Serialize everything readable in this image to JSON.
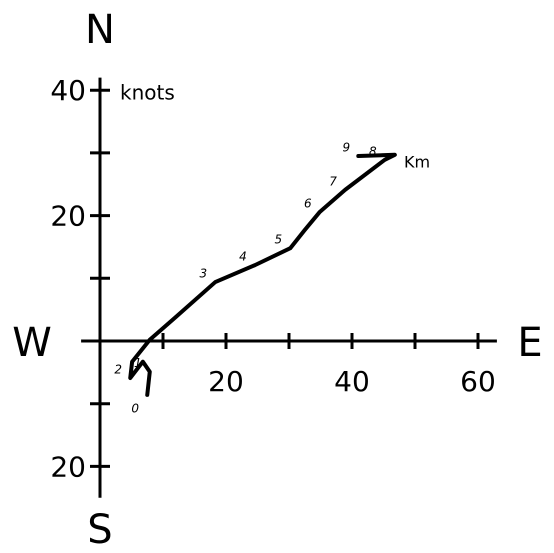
{
  "chart_data": {
    "type": "line",
    "compass": {
      "north": "N",
      "south": "S",
      "west": "W",
      "east": "E"
    },
    "annotations": {
      "speed_unit": "knots",
      "height_unit": "Km"
    },
    "xlim": [
      -3,
      63
    ],
    "ylim": [
      -25,
      42
    ],
    "xticks": [
      20,
      40,
      60
    ],
    "xminorticks": [
      10,
      30,
      50
    ],
    "yticks": [
      40,
      20,
      {
        "value": -20,
        "label": "20"
      }
    ],
    "yminorticks": [
      30,
      10,
      -10
    ],
    "series": [
      {
        "color": "#000000",
        "x": [
          7.5,
          7.9,
          6.8,
          4.8,
          5.1,
          7.9,
          11.9,
          18.3,
          24.6,
          30.2,
          32.5,
          34.9,
          38.9,
          45.2,
          46.8,
          41.0
        ],
        "values": [
          -8.6,
          -4.9,
          -3.3,
          -5.9,
          -3.3,
          0.2,
          3.7,
          9.4,
          12.1,
          14.8,
          17.7,
          20.6,
          24.1,
          28.9,
          29.7,
          29.5
        ],
        "point_labels": [
          "0",
          "1",
          null,
          "2",
          null,
          null,
          null,
          "3",
          "4",
          "5",
          null,
          "6",
          "7",
          "8",
          null,
          "9"
        ]
      }
    ]
  }
}
